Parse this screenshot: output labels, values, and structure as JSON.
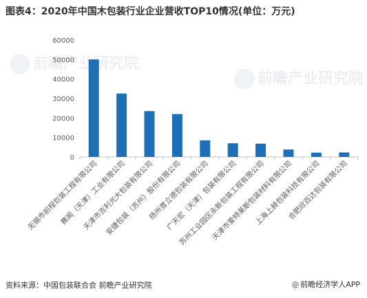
{
  "title": "图表4：2020年中国木包装行业企业营收TOP10情况(单位：万元)",
  "source": "资料来源：中国包装联合会 前瞻产业研究院",
  "brand": {
    "icon": "eye-icon",
    "icon_glyph": "◎",
    "text": "前瞻经济学人APP"
  },
  "watermark": "前瞻产业研究院",
  "colors": {
    "bar": "#1e6fb5",
    "axis": "#bfbfbf",
    "grid": "#d9d9d9",
    "text": "#595959"
  },
  "chart_data": {
    "type": "bar",
    "title": "图表4：2020年中国木包装行业企业营收TOP10情况(单位：万元)",
    "xlabel": "",
    "ylabel": "",
    "ylim": [
      0,
      60000
    ],
    "yticks": [
      0,
      10000,
      20000,
      30000,
      40000,
      50000,
      60000
    ],
    "grid": false,
    "legend": "none",
    "categories": [
      "无锡市前程包装工程有限公司",
      "赛闻（天津）工业有限公司",
      "天津市吉利光大包装有限公司",
      "安捷包装（苏州）股份有限公司",
      "扬州普立德包装有限公司",
      "广天宏（天津）包装有限公司",
      "苏州工业园区永新包装工程有限公司",
      "天津市爱特莱斯包装材料有限公司",
      "上海上赫包装科技有限公司",
      "合肥欣百达包装有限公司"
    ],
    "values": [
      50000,
      32500,
      23500,
      22000,
      8500,
      7000,
      6800,
      3800,
      2200,
      2300
    ]
  }
}
